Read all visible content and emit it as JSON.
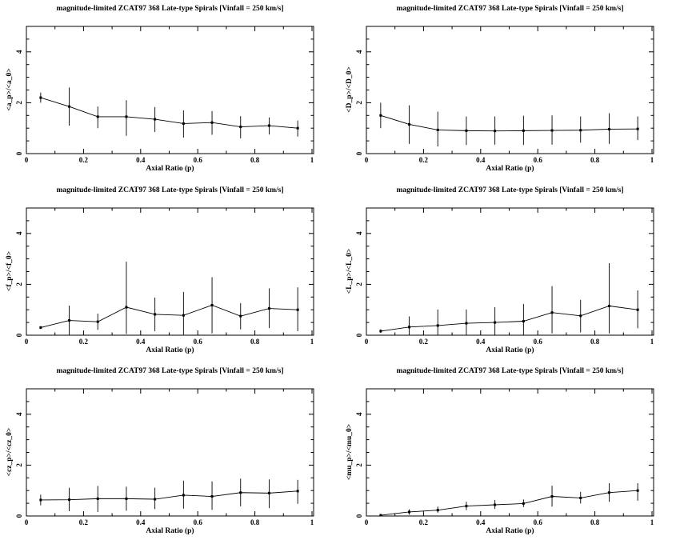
{
  "figure": {
    "background": "#ffffff",
    "ink_color": "#000000",
    "grid": "off",
    "legend": "none",
    "marker": "filled-square",
    "errorbars": "vertical-no-caps"
  },
  "chart_data": [
    {
      "panel": "top-left",
      "type": "line",
      "title": "magnitude-limited ZCAT97 368 Late-type Spirals [Vinfall = 250 km/s]",
      "xlabel": "Axial Ratio (p)",
      "ylabel": "<a_p>/<a_0>",
      "x": [
        0.05,
        0.15,
        0.25,
        0.35,
        0.45,
        0.55,
        0.65,
        0.75,
        0.85,
        0.95
      ],
      "y": [
        2.2,
        1.85,
        1.45,
        1.45,
        1.35,
        1.18,
        1.22,
        1.05,
        1.1,
        1.0
      ],
      "err_minus": [
        0.2,
        0.75,
        0.45,
        0.75,
        0.5,
        0.55,
        0.48,
        0.45,
        0.35,
        0.33
      ],
      "err_plus": [
        0.2,
        0.75,
        0.4,
        0.65,
        0.48,
        0.52,
        0.45,
        0.42,
        0.32,
        0.3
      ],
      "xlim": [
        0,
        1
      ],
      "ylim": [
        0,
        5
      ],
      "xticks": [
        0,
        0.2,
        0.4,
        0.6,
        0.8,
        1
      ],
      "xtick_labels": [
        "0",
        "0.2",
        "0.4",
        "0.6",
        "0.8",
        "1"
      ],
      "yticks": [
        0,
        2,
        4
      ],
      "ytick_labels": [
        "0",
        "2",
        "4"
      ]
    },
    {
      "panel": "top-right",
      "type": "line",
      "title": "magnitude-limited ZCAT97 368 Late-type Spirals [Vinfall = 250 km/s]",
      "xlabel": "Axial Ratio (p)",
      "ylabel": "<D_p>/<D_0>",
      "x": [
        0.05,
        0.15,
        0.25,
        0.35,
        0.45,
        0.55,
        0.65,
        0.75,
        0.85,
        0.95
      ],
      "y": [
        1.5,
        1.15,
        0.93,
        0.9,
        0.89,
        0.9,
        0.91,
        0.92,
        0.96,
        0.97
      ],
      "err_minus": [
        0.5,
        0.77,
        0.65,
        0.56,
        0.54,
        0.56,
        0.56,
        0.49,
        0.58,
        0.44
      ],
      "err_plus": [
        0.5,
        0.75,
        0.72,
        0.56,
        0.57,
        0.59,
        0.59,
        0.54,
        0.63,
        0.49
      ],
      "xlim": [
        0,
        1
      ],
      "ylim": [
        0,
        5
      ],
      "xticks": [
        0,
        0.2,
        0.4,
        0.6,
        0.8,
        1
      ],
      "xtick_labels": [
        "0",
        "0.2",
        "0.4",
        "0.6",
        "0.8",
        "1"
      ],
      "yticks": [
        0,
        2,
        4
      ],
      "ytick_labels": [
        "0",
        "2",
        "4"
      ]
    },
    {
      "panel": "middle-left",
      "type": "line",
      "title": "magnitude-limited ZCAT97 368 Late-type Spirals [Vinfall = 250 km/s]",
      "xlabel": "Axial Ratio (p)",
      "ylabel": "<f_p>/<f_0>",
      "x": [
        0.05,
        0.15,
        0.25,
        0.35,
        0.45,
        0.55,
        0.65,
        0.75,
        0.85,
        0.95
      ],
      "y": [
        0.3,
        0.58,
        0.53,
        1.1,
        0.82,
        0.78,
        1.18,
        0.75,
        1.05,
        1.0
      ],
      "err_minus": [
        0.06,
        0.58,
        0.32,
        1.05,
        0.66,
        0.76,
        1.11,
        0.52,
        0.77,
        0.84
      ],
      "err_plus": [
        0.06,
        0.58,
        0.32,
        1.79,
        0.66,
        0.92,
        1.1,
        0.51,
        0.79,
        0.88
      ],
      "xlim": [
        0,
        1
      ],
      "ylim": [
        0,
        5
      ],
      "xticks": [
        0,
        0.2,
        0.4,
        0.6,
        0.8,
        1
      ],
      "xtick_labels": [
        "0",
        "0.2",
        "0.4",
        "0.6",
        "0.8",
        "1"
      ],
      "yticks": [
        0,
        2,
        4
      ],
      "ytick_labels": [
        "0",
        "2",
        "4"
      ]
    },
    {
      "panel": "middle-right",
      "type": "line",
      "title": "magnitude-limited ZCAT97 368 Late-type Spirals [Vinfall = 250 km/s]",
      "xlabel": "Axial Ratio (p)",
      "ylabel": "<L_p>/<L_0>",
      "x": [
        0.05,
        0.15,
        0.25,
        0.35,
        0.45,
        0.55,
        0.65,
        0.75,
        0.85,
        0.95
      ],
      "y": [
        0.16,
        0.32,
        0.38,
        0.47,
        0.5,
        0.55,
        0.89,
        0.76,
        1.15,
        1.0
      ],
      "err_minus": [
        0.07,
        0.32,
        0.38,
        0.47,
        0.5,
        0.55,
        0.82,
        0.65,
        1.08,
        0.73
      ],
      "err_plus": [
        0.07,
        0.42,
        0.63,
        0.54,
        0.6,
        0.68,
        1.04,
        0.63,
        1.68,
        0.76
      ],
      "xlim": [
        0,
        1
      ],
      "ylim": [
        0,
        5
      ],
      "xticks": [
        0,
        0.2,
        0.4,
        0.6,
        0.8,
        1
      ],
      "xtick_labels": [
        "0",
        "0.2",
        "0.4",
        "0.6",
        "0.8",
        "1"
      ],
      "yticks": [
        0,
        2,
        4
      ],
      "ytick_labels": [
        "0",
        "2",
        "4"
      ]
    },
    {
      "panel": "bottom-left",
      "type": "line",
      "title": "magnitude-limited ZCAT97 368 Late-type Spirals [Vinfall = 250 km/s]",
      "xlabel": "Axial Ratio (p)",
      "ylabel": "<cz_p>/<cz_0>",
      "x": [
        0.05,
        0.15,
        0.25,
        0.35,
        0.45,
        0.55,
        0.65,
        0.75,
        0.85,
        0.95
      ],
      "y": [
        0.63,
        0.64,
        0.68,
        0.68,
        0.66,
        0.82,
        0.77,
        0.92,
        0.9,
        0.98
      ],
      "err_minus": [
        0.21,
        0.45,
        0.52,
        0.47,
        0.39,
        0.53,
        0.53,
        0.54,
        0.59,
        0.5
      ],
      "err_plus": [
        0.21,
        0.47,
        0.5,
        0.47,
        0.45,
        0.57,
        0.59,
        0.55,
        0.54,
        0.44
      ],
      "xlim": [
        0,
        1
      ],
      "ylim": [
        0,
        5
      ],
      "xticks": [
        0,
        0.2,
        0.4,
        0.6,
        0.8,
        1
      ],
      "xtick_labels": [
        "0",
        "0.2",
        "0.4",
        "0.6",
        "0.8",
        "1"
      ],
      "yticks": [
        0,
        2,
        4
      ],
      "ytick_labels": [
        "0",
        "2",
        "4"
      ]
    },
    {
      "panel": "bottom-right",
      "type": "line",
      "title": "magnitude-limited ZCAT97 368 Late-type Spirals [Vinfall = 250 km/s]",
      "xlabel": "Axial Ratio (p)",
      "ylabel": "<mu_p>/<mu_0>",
      "x": [
        0.05,
        0.15,
        0.25,
        0.35,
        0.45,
        0.55,
        0.65,
        0.75,
        0.85,
        0.95
      ],
      "y": [
        0.03,
        0.16,
        0.23,
        0.39,
        0.44,
        0.49,
        0.77,
        0.71,
        0.92,
        1.0
      ],
      "err_minus": [
        0.03,
        0.11,
        0.1,
        0.16,
        0.16,
        0.14,
        0.4,
        0.22,
        0.36,
        0.4
      ],
      "err_plus": [
        0.04,
        0.1,
        0.14,
        0.17,
        0.19,
        0.16,
        0.42,
        0.24,
        0.37,
        0.29
      ],
      "xlim": [
        0,
        1
      ],
      "ylim": [
        0,
        5
      ],
      "xticks": [
        0,
        0.2,
        0.4,
        0.6,
        0.8,
        1
      ],
      "xtick_labels": [
        "0",
        "0.2",
        "0.4",
        "0.6",
        "0.8",
        "1"
      ],
      "yticks": [
        0,
        2,
        4
      ],
      "ytick_labels": [
        "0",
        "2",
        "4"
      ]
    }
  ]
}
